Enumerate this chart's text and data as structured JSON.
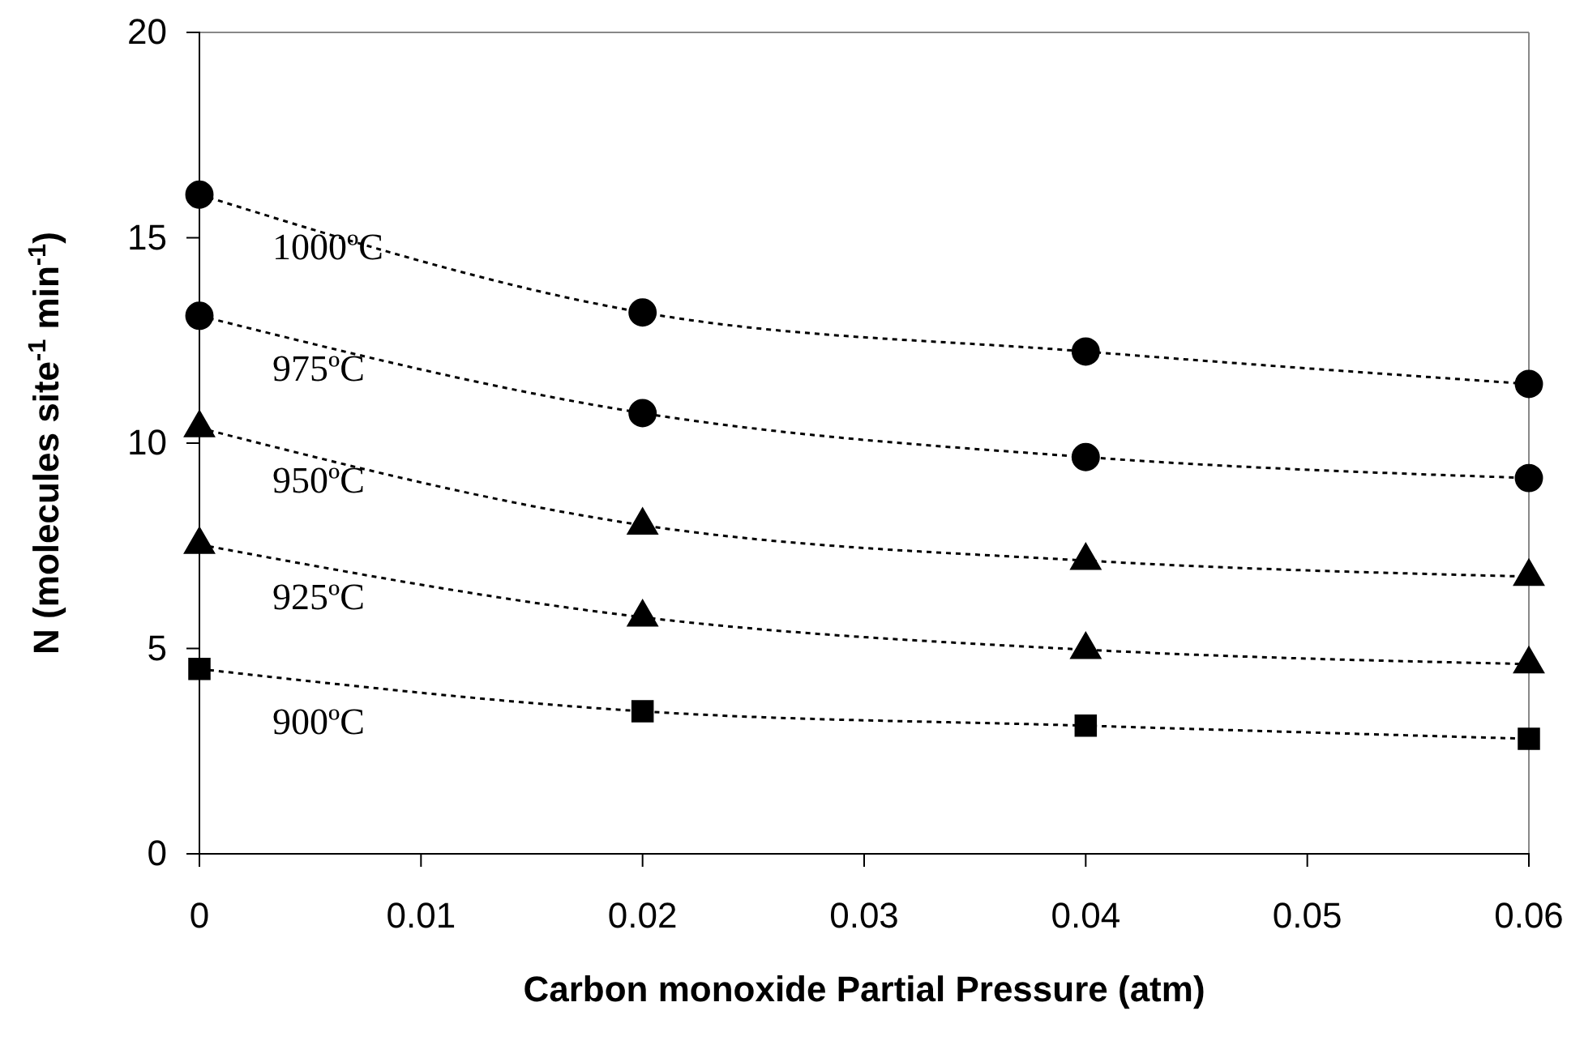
{
  "chart_data": {
    "type": "line",
    "xlabel": "Carbon monoxide Partial Pressure (atm)",
    "ylabel": "N (molecules site$^{-1}$ min$^{-1}$)",
    "x": [
      0,
      0.02,
      0.04,
      0.06
    ],
    "series": [
      {
        "name": "1000ºC",
        "color": "#000000",
        "marker": "circle",
        "values": [
          16.05,
          13.18,
          12.23,
          11.44
        ]
      },
      {
        "name": "975ºC",
        "color": "#000000",
        "marker": "circle",
        "values": [
          13.1,
          10.73,
          9.66,
          9.15
        ]
      },
      {
        "name": "950ºC",
        "color": "#000000",
        "marker": "triangle",
        "values": [
          10.37,
          8.0,
          7.14,
          6.75
        ]
      },
      {
        "name": "925ºC",
        "color": "#000000",
        "marker": "triangle",
        "values": [
          7.53,
          5.76,
          4.97,
          4.62
        ]
      },
      {
        "name": "900ºC",
        "color": "#000000",
        "marker": "square",
        "values": [
          4.5,
          3.47,
          3.12,
          2.8
        ]
      }
    ],
    "xlim": [
      0,
      0.06
    ],
    "xticks": [
      0,
      0.01,
      0.02,
      0.03,
      0.04,
      0.05,
      0.06
    ],
    "ylim": [
      0,
      20
    ],
    "yticks": [
      0,
      5,
      10,
      15,
      20
    ],
    "line_style": "dotted"
  }
}
